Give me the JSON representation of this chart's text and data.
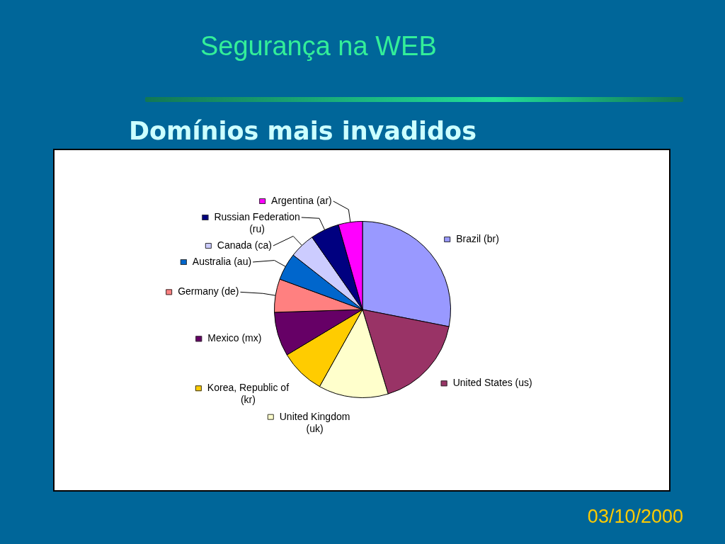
{
  "chart_data": {
    "type": "pie",
    "title": "Segurança na WEB",
    "subtitle": "Domínios mais invadidos",
    "categories": [
      "Brazil (br)",
      "United States (us)",
      "United Kingdom (uk)",
      "Korea, Republic of (kr)",
      "Mexico (mx)",
      "Germany (de)",
      "Australia (au)",
      "Canada (ca)",
      "Russian Federation (ru)",
      "Argentina (ar)"
    ],
    "values": [
      28.1,
      17.2,
      12.8,
      8.3,
      8.1,
      6.1,
      5.0,
      4.7,
      5.3,
      4.4
    ],
    "colors": [
      "#9999ff",
      "#993366",
      "#ffffcc",
      "#ffcc00",
      "#660066",
      "#ff8080",
      "#0066cc",
      "#ccccff",
      "#000080",
      "#ff00ff"
    ],
    "legend": "left",
    "annotations": [
      "03/10/2000"
    ]
  }
}
